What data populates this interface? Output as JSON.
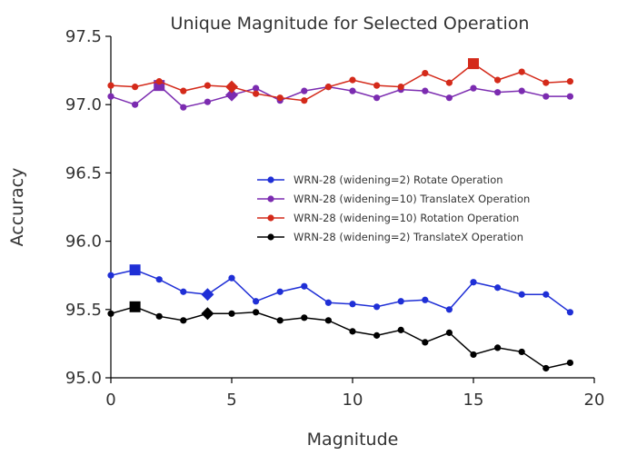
{
  "chart_data": {
    "type": "line",
    "title": "Unique Magnitude for Selected Operation",
    "xlabel": "Magnitude",
    "ylabel": "Accuracy",
    "xlim": [
      0,
      20
    ],
    "ylim": [
      95.0,
      97.5
    ],
    "xticks": [
      0,
      5,
      10,
      15,
      20
    ],
    "yticks": [
      95.0,
      95.5,
      96.0,
      96.5,
      97.0,
      97.5
    ],
    "xtick_labels": [
      "0",
      "5",
      "10",
      "15",
      "20"
    ],
    "ytick_labels": [
      "95.0",
      "95.5",
      "96.0",
      "96.5",
      "97.0",
      "97.5"
    ],
    "grid": false,
    "legend_position": "center-right",
    "x": [
      0,
      1,
      2,
      3,
      4,
      5,
      6,
      7,
      8,
      9,
      10,
      11,
      12,
      13,
      14,
      15,
      16,
      17,
      18,
      19
    ],
    "series": [
      {
        "name": "WRN-28 (widening=2) Rotate Operation",
        "color": "#1f2fd6",
        "values": [
          95.75,
          95.79,
          95.72,
          95.63,
          95.61,
          95.73,
          95.56,
          95.63,
          95.67,
          95.55,
          95.54,
          95.52,
          95.56,
          95.57,
          95.5,
          95.7,
          95.66,
          95.61,
          95.61,
          95.48
        ],
        "highlights": [
          {
            "x": 1,
            "shape": "square"
          },
          {
            "x": 4,
            "shape": "diamond"
          }
        ]
      },
      {
        "name": "WRN-28 (widening=10) TranslateX Operation",
        "color": "#7b2bb0",
        "values": [
          97.06,
          97.0,
          97.14,
          96.98,
          97.02,
          97.07,
          97.12,
          97.03,
          97.1,
          97.13,
          97.1,
          97.05,
          97.11,
          97.1,
          97.05,
          97.12,
          97.09,
          97.1,
          97.06,
          97.06
        ],
        "highlights": [
          {
            "x": 2,
            "shape": "square"
          },
          {
            "x": 5,
            "shape": "diamond"
          }
        ]
      },
      {
        "name": "WRN-28 (widening=10) Rotation Operation",
        "color": "#d42a1a",
        "values": [
          97.14,
          97.13,
          97.17,
          97.1,
          97.14,
          97.13,
          97.08,
          97.05,
          97.03,
          97.13,
          97.18,
          97.14,
          97.13,
          97.23,
          97.16,
          97.3,
          97.18,
          97.24,
          97.16,
          97.17
        ],
        "highlights": [
          {
            "x": 15,
            "shape": "square"
          },
          {
            "x": 5,
            "shape": "diamond"
          }
        ]
      },
      {
        "name": "WRN-28 (widening=2) TranslateX Operation",
        "color": "#000000",
        "values": [
          95.47,
          95.52,
          95.45,
          95.42,
          95.47,
          95.47,
          95.48,
          95.42,
          95.44,
          95.42,
          95.34,
          95.31,
          95.35,
          95.26,
          95.33,
          95.17,
          95.22,
          95.19,
          95.07,
          95.11
        ],
        "highlights": [
          {
            "x": 1,
            "shape": "square"
          },
          {
            "x": 4,
            "shape": "diamond"
          }
        ]
      }
    ]
  }
}
